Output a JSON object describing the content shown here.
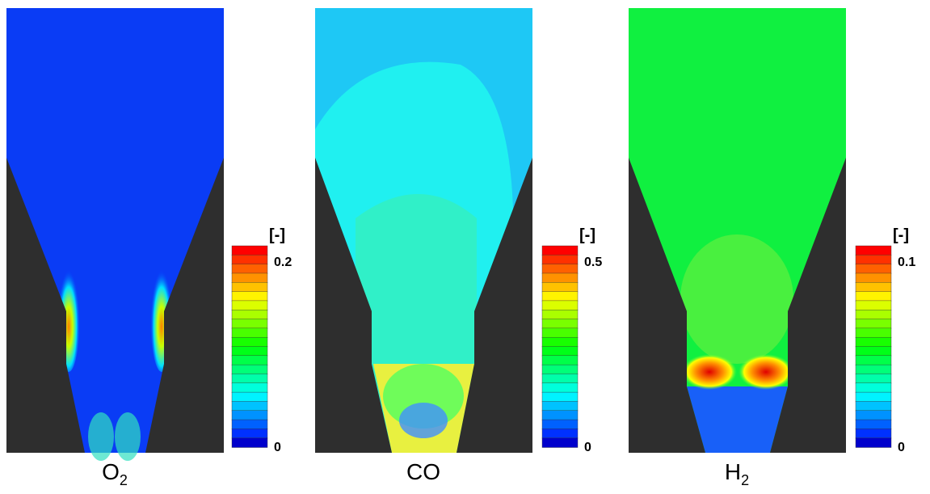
{
  "panels": [
    {
      "label": {
        "main": "O",
        "sub": "2"
      },
      "colorbar": {
        "unit": "[-]",
        "max": 0.2,
        "min": 0
      }
    },
    {
      "label": {
        "main": "CO"
      },
      "colorbar": {
        "unit": "[-]",
        "max": 0.5,
        "min": 0
      }
    },
    {
      "label": {
        "main": "H",
        "sub": "2"
      },
      "colorbar": {
        "unit": "[-]",
        "max": 0.1,
        "min": 0
      }
    }
  ]
}
